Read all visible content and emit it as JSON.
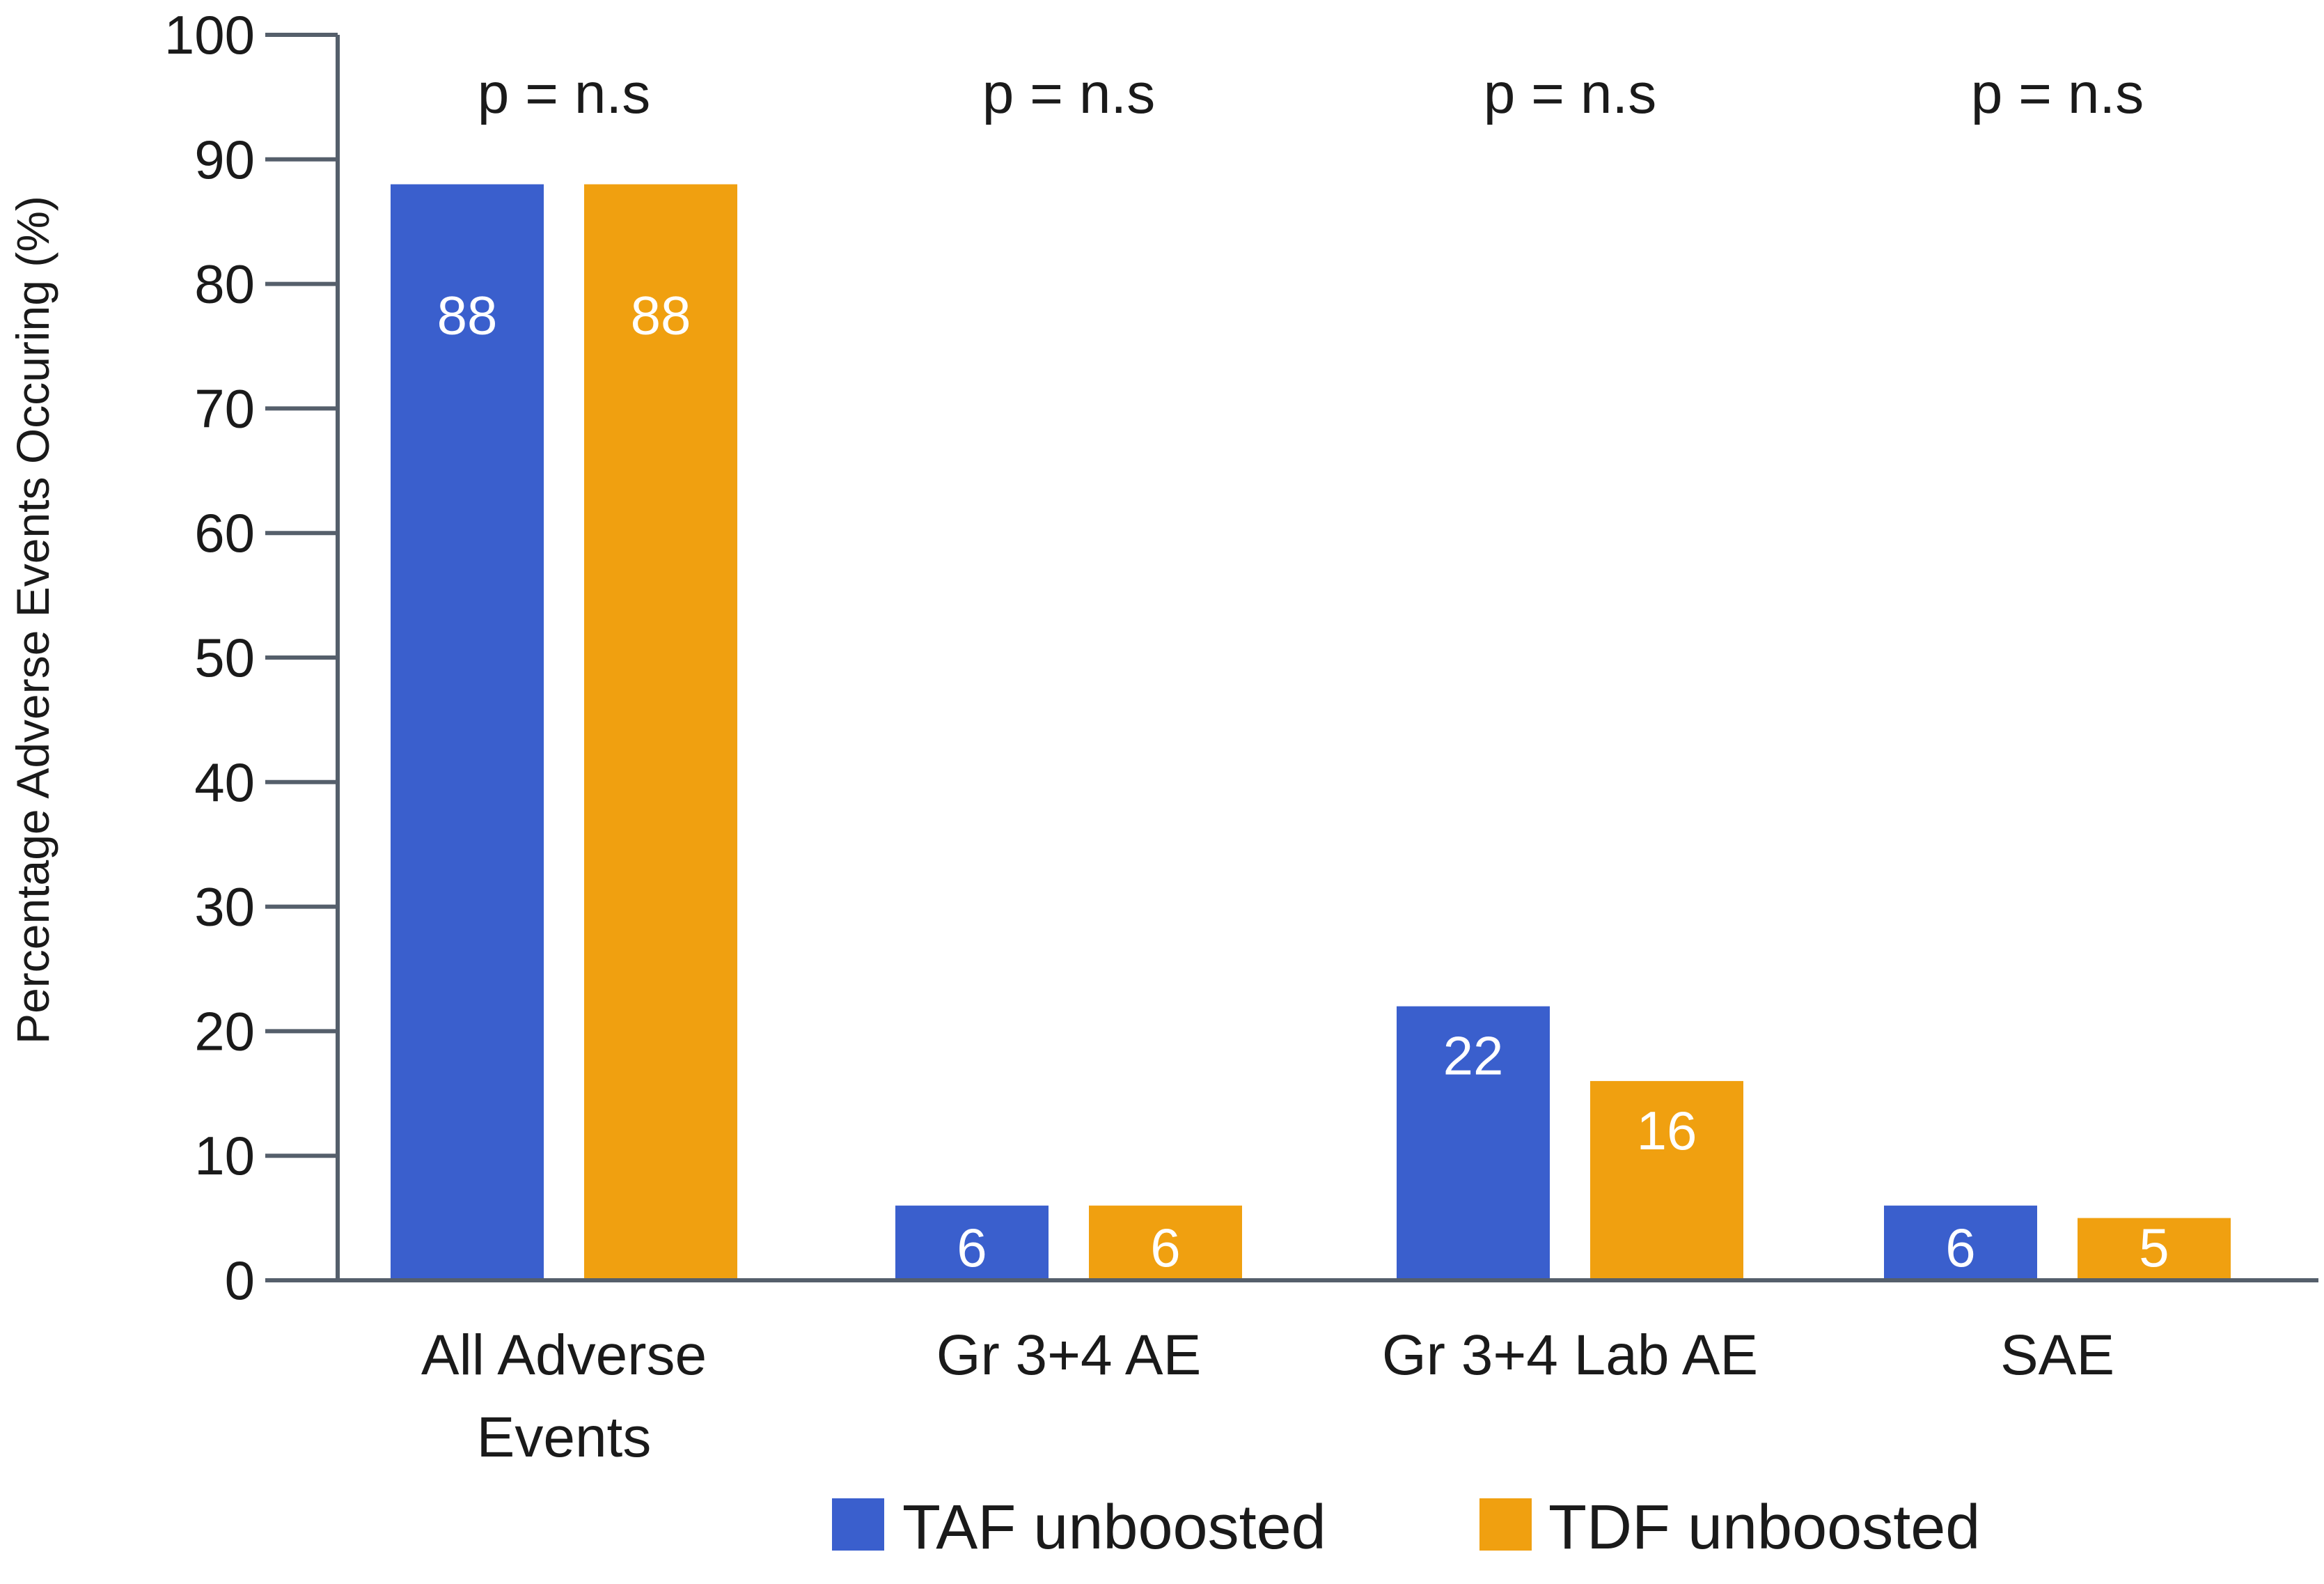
{
  "chart_data": {
    "type": "bar",
    "title": "",
    "xlabel": "",
    "ylabel": "Percentage Adverse Events Occuring (%)",
    "ylim": [
      0,
      100
    ],
    "yticks": [
      "0",
      "10",
      "20",
      "30",
      "40",
      "50",
      "60",
      "70",
      "80",
      "90",
      "100"
    ],
    "categories": [
      [
        "All Adverse",
        "Events"
      ],
      [
        "Gr 3+4 AE"
      ],
      [
        "Gr 3+4 Lab AE"
      ],
      [
        "SAE"
      ]
    ],
    "series": [
      {
        "name": "TAF unboosted",
        "color": "#3a5fcd",
        "values": [
          88,
          6,
          22,
          6
        ],
        "labels": [
          "88",
          "6",
          "22",
          "6"
        ]
      },
      {
        "name": "TDF unboosted",
        "color": "#f0a010",
        "values": [
          88,
          6,
          16,
          5
        ],
        "labels": [
          "88",
          "6",
          "16",
          "5"
        ]
      }
    ],
    "annotations": [
      "p = n.s",
      "p = n.s",
      "p = n.s",
      "p = n.s"
    ],
    "legend_position": "bottom",
    "grid": false,
    "axis_color": "#555f6b"
  }
}
